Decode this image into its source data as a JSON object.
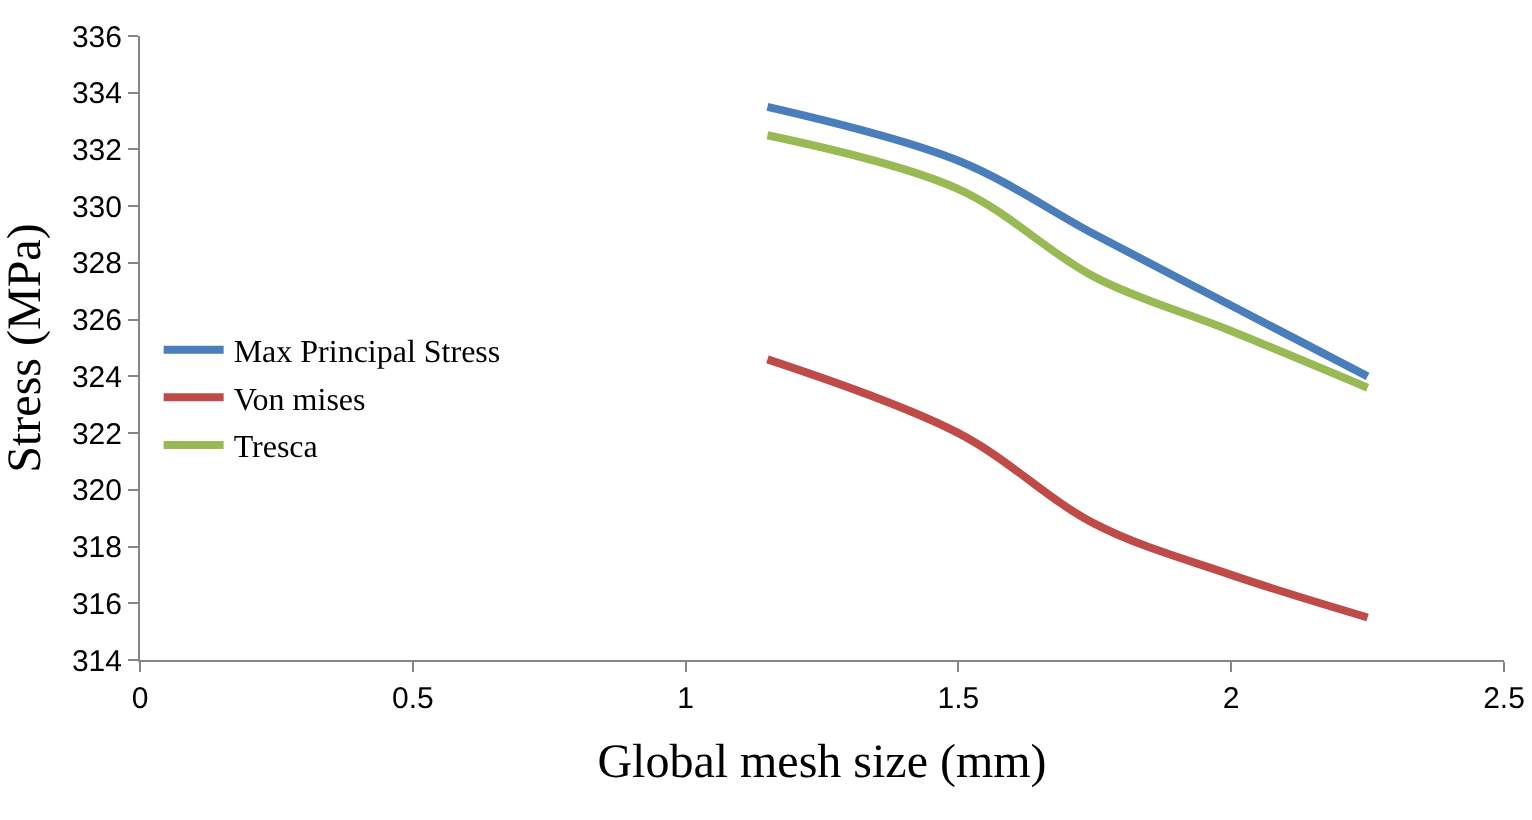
{
  "chart_data": {
    "type": "line",
    "xlabel": "Global mesh size (mm)",
    "ylabel": "Stress (MPa)",
    "x": [
      1.15,
      1.5,
      1.75,
      2,
      2.25
    ],
    "series": [
      {
        "name": "Max Principal Stress",
        "color": "#4a7ebb",
        "values": [
          333.5,
          331.6,
          329,
          326.5,
          324
        ]
      },
      {
        "name": "Von mises",
        "color": "#be4b48",
        "values": [
          324.6,
          322,
          318.8,
          317,
          315.5
        ]
      },
      {
        "name": "Tresca",
        "color": "#98b954",
        "values": [
          332.5,
          330.6,
          327.5,
          325.6,
          323.6
        ]
      }
    ],
    "xlim": [
      0,
      2.5
    ],
    "xticks": [
      0,
      0.5,
      1,
      1.5,
      2,
      2.5
    ],
    "ylim": [
      314,
      336
    ],
    "yticks": [
      314,
      316,
      318,
      320,
      322,
      324,
      326,
      328,
      330,
      332,
      334,
      336
    ],
    "grid": false,
    "legend": "left",
    "marker": "none",
    "line_style": "solid"
  }
}
